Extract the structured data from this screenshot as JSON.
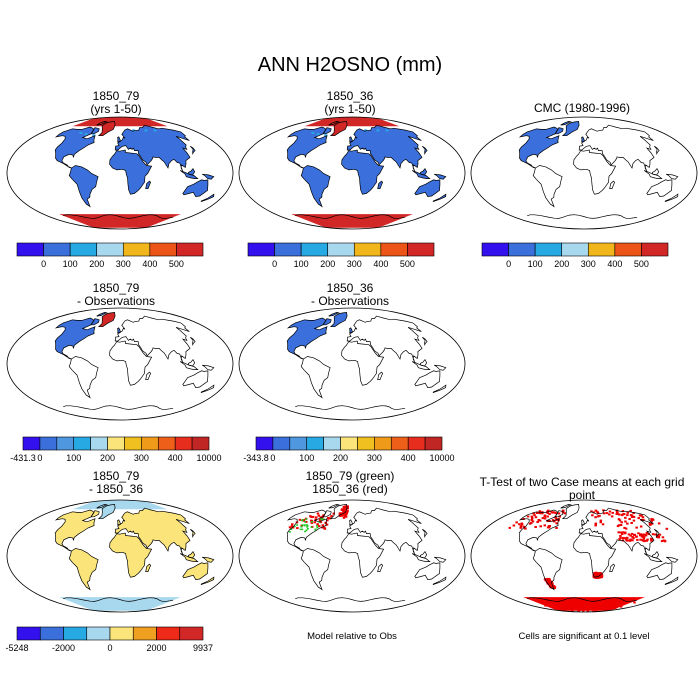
{
  "main_title": "ANN H2OSNO (mm)",
  "colors": {
    "abs": [
      "#3311ee",
      "#3a6fdc",
      "#27aae4",
      "#a8d8ee",
      "#f0b61c",
      "#ec5418",
      "#d22727"
    ],
    "diff": [
      "#3311ee",
      "#3a6fdc",
      "#4f98df",
      "#27aae4",
      "#a8d8ee",
      "#fbe57a",
      "#f0c020",
      "#f09a1a",
      "#ee6019",
      "#e62d1e",
      "#c02624"
    ],
    "mdiff": [
      "#3311ee",
      "#3a6fdc",
      "#27aae4",
      "#a8d8ee",
      "#fbe57a",
      "#f0a020",
      "#ee2a18",
      "#d22727"
    ],
    "green": "#22cc22",
    "red": "#ee0000"
  },
  "panels": [
    {
      "id": "p1",
      "title": [
        "1850_79",
        "(yrs 1-50)"
      ],
      "style": "abs",
      "polar": "#d22727",
      "ant": "#d22727",
      "fill": "#3a6fdc",
      "sparse": false
    },
    {
      "id": "p2",
      "title": [
        "1850_36",
        "(yrs 1-50)"
      ],
      "style": "abs",
      "polar": "#d22727",
      "ant": "#d22727",
      "fill": "#3a6fdc",
      "sparse": false
    },
    {
      "id": "p3",
      "title": [
        "CMC (1980-1996)"
      ],
      "style": "obs",
      "polar": "#3a6fdc",
      "ant": null,
      "fill": "#3a6fdc",
      "sparse": false
    },
    {
      "id": "p4",
      "title": [
        "1850_79",
        "- Observations"
      ],
      "style": "obsdiff",
      "polar": "#d22727",
      "ant": null,
      "fill": "#3a6fdc",
      "sparse": false
    },
    {
      "id": "p5",
      "title": [
        "1850_36",
        "- Observations"
      ],
      "style": "obsdiff",
      "polar": "#3a6fdc",
      "ant": null,
      "fill": "#3a6fdc",
      "sparse": false
    },
    {
      "id": "p7",
      "title": [
        "1850_79",
        "- 1850_36"
      ],
      "style": "mdiff",
      "polar": "#a8d8ee",
      "ant": "#a8d8ee",
      "fill": "#fbe57a",
      "sparse": false
    },
    {
      "id": "p8",
      "title": [
        "1850_79 (green)",
        "1850_36 (red)"
      ],
      "style": "contour",
      "polar": "#ee0000",
      "ant": null,
      "fill": "#ee0000",
      "sparse": true
    },
    {
      "id": "p9",
      "title": [
        "T-Test of two Case means at each grid point"
      ],
      "style": "ttest",
      "polar": "#ee0000",
      "ant": "#ee0000",
      "fill": "#ee0000",
      "sparse": true
    }
  ],
  "colorbars": {
    "cb1": {
      "labels": [
        "0",
        "100",
        "200",
        "300",
        "400",
        "500"
      ],
      "palette": "abs"
    },
    "cb2": {
      "labels": [
        "0",
        "100",
        "200",
        "300",
        "400",
        "500"
      ],
      "palette": "abs"
    },
    "cb3": {
      "labels": [
        "0",
        "100",
        "200",
        "300",
        "400",
        "500"
      ],
      "palette": "abs"
    },
    "cb4": {
      "labels": [
        "-431.3",
        "0",
        "100",
        "200",
        "300",
        "400",
        "10000"
      ],
      "palette": "diff"
    },
    "cb5": {
      "labels": [
        "-343.8",
        "0",
        "100",
        "200",
        "300",
        "400",
        "10000"
      ],
      "palette": "diff"
    },
    "cb7": {
      "labels": [
        "-5248",
        "-2000",
        "0",
        "2000",
        "9937"
      ],
      "palette": "mdiff"
    }
  },
  "notes": {
    "model_relative": "Model relative to Obs",
    "significance": "Cells are significant at 0.1 level"
  },
  "chart_data": {
    "type": "heatmap",
    "title": "ANN H2OSNO (mm)",
    "variable": "H2OSNO",
    "units": "mm",
    "panels": [
      {
        "title": "1850_79 (yrs 1-50)",
        "colorbar_ticks": [
          0,
          100,
          200,
          300,
          400,
          500
        ]
      },
      {
        "title": "1850_36 (yrs 1-50)",
        "colorbar_ticks": [
          0,
          100,
          200,
          300,
          400,
          500
        ]
      },
      {
        "title": "CMC (1980-1996)",
        "colorbar_ticks": [
          0,
          100,
          200,
          300,
          400,
          500
        ]
      },
      {
        "title": "1850_79 - Observations",
        "colorbar_ticks": [
          -431.3,
          0,
          100,
          200,
          300,
          400,
          10000
        ]
      },
      {
        "title": "1850_36 - Observations",
        "colorbar_ticks": [
          -343.8,
          0,
          100,
          200,
          300,
          400,
          10000
        ]
      },
      {
        "title": "1850_79 - 1850_36",
        "colorbar_ticks": [
          -5248,
          -2000,
          0,
          2000,
          9937
        ]
      },
      {
        "title": "1850_79 (green) 1850_36 (red)",
        "note": "Model relative to Obs"
      },
      {
        "title": "T-Test of two Case means at each grid point",
        "note": "Cells are significant at 0.1 level"
      }
    ]
  }
}
